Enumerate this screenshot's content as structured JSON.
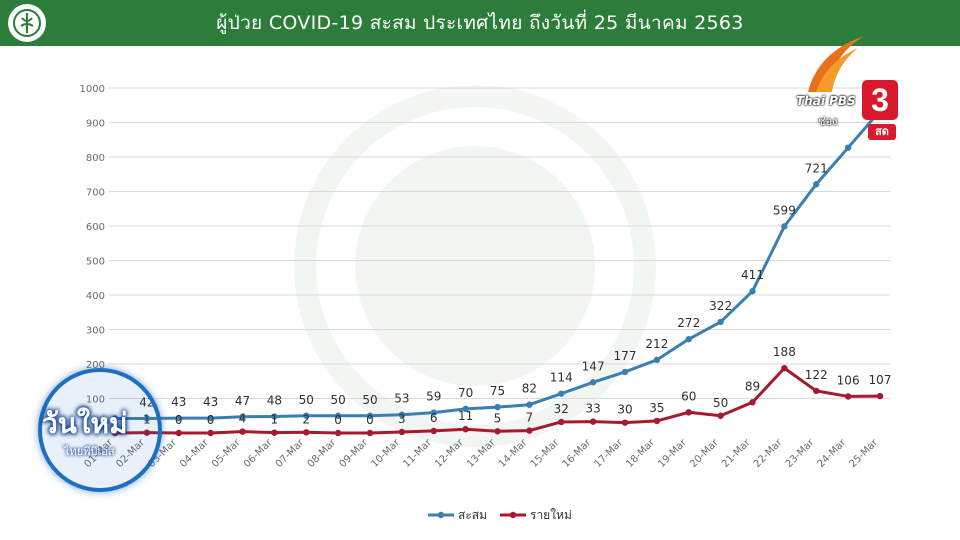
{
  "header": {
    "title": "ผู้ป่วย COVID-19 สะสม  ประเทศไทย ถึงวันที่ 25 มีนาคม 2563"
  },
  "broadcaster": {
    "brand": "Thai PBS",
    "channel": "3",
    "sub": "ช่อง",
    "live": "สด"
  },
  "program": {
    "title": "วันใหม่",
    "sub": "ไทยพีบีเอส"
  },
  "colors": {
    "cumulative": "#3a7fb2",
    "new": "#a6192e",
    "header": "#2b7d39",
    "grid": "#d9d9d9"
  },
  "chart_data": {
    "type": "line",
    "title": "ผู้ป่วย COVID-19 สะสม  ประเทศไทย ถึงวันที่ 25 มีนาคม 2563",
    "categories": [
      "01-Mar",
      "02-Mar",
      "03-Mar",
      "04-Mar",
      "05-Mar",
      "06-Mar",
      "07-Mar",
      "08-Mar",
      "09-Mar",
      "10-Mar",
      "11-Mar",
      "12-Mar",
      "13-Mar",
      "14-Mar",
      "15-Mar",
      "16-Mar",
      "17-Mar",
      "18-Mar",
      "19-Mar",
      "20-Mar",
      "21-Mar",
      "22-Mar",
      "23-Mar",
      "24-Mar",
      "25-Mar"
    ],
    "series": [
      {
        "name": "สะสม",
        "values": [
          42,
          42,
          43,
          43,
          47,
          48,
          50,
          50,
          50,
          53,
          59,
          70,
          75,
          82,
          114,
          147,
          177,
          212,
          272,
          322,
          411,
          599,
          721,
          827,
          934
        ],
        "labels": [
          "",
          "42",
          "43",
          "43",
          "47",
          "48",
          "50",
          "50",
          "50",
          "53",
          "59",
          "70",
          "75",
          "82",
          "114",
          "147",
          "177",
          "212",
          "272",
          "322",
          "411",
          "599",
          "721",
          "",
          ""
        ]
      },
      {
        "name": "รายใหม่",
        "values": [
          0,
          1,
          0,
          0,
          4,
          1,
          2,
          0,
          0,
          3,
          6,
          11,
          5,
          7,
          32,
          33,
          30,
          35,
          60,
          50,
          89,
          188,
          122,
          106,
          107
        ],
        "labels": [
          "",
          "1",
          "0",
          "0",
          "4",
          "1",
          "2",
          "0",
          "0",
          "3",
          "6",
          "11",
          "5",
          "7",
          "32",
          "33",
          "30",
          "35",
          "60",
          "50",
          "89",
          "188",
          "122",
          "106",
          "107"
        ]
      }
    ],
    "ylim": [
      0,
      1000
    ],
    "yticks": [
      "100",
      "200",
      "300",
      "400",
      "500",
      "600",
      "700",
      "800",
      "900",
      "1000"
    ],
    "grid": true,
    "legend": "bottom-center"
  }
}
